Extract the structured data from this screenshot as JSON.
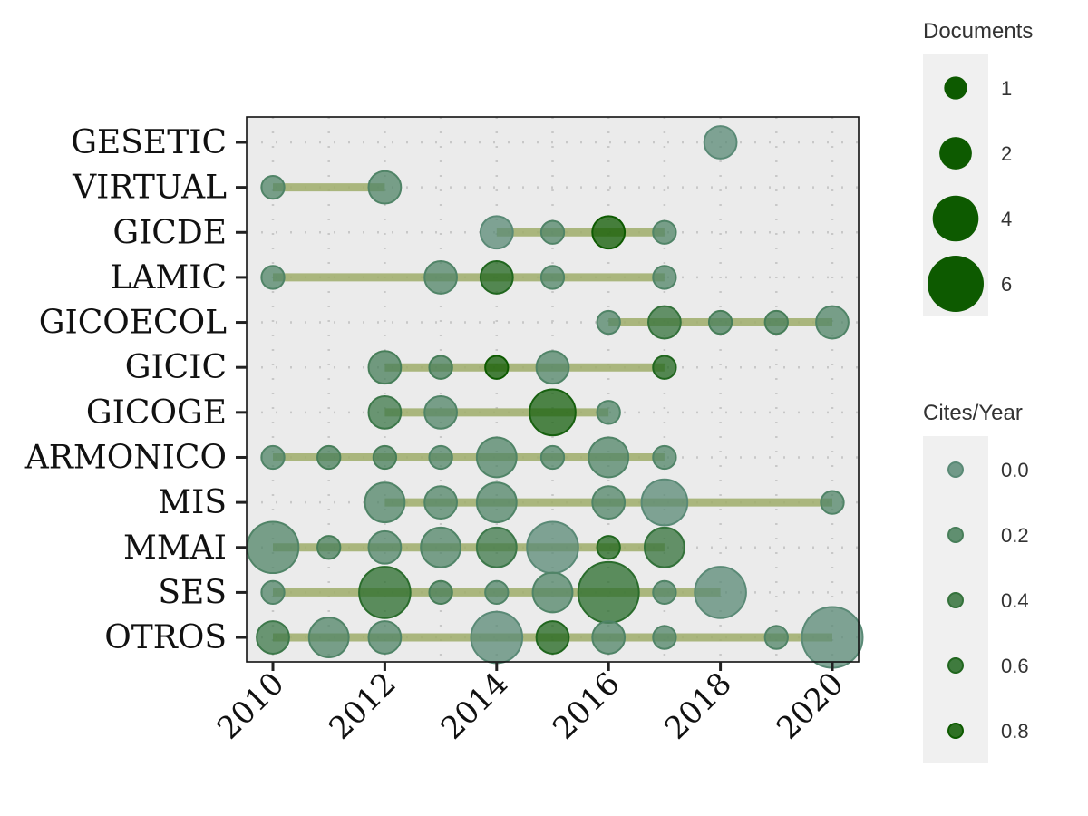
{
  "chart_data": {
    "type": "scatter",
    "x_range": [
      2010,
      2020
    ],
    "x_ticks": [
      "2010",
      "2012",
      "2014",
      "2016",
      "2018",
      "2020"
    ],
    "categories": [
      "GESETIC",
      "VIRTUAL",
      "GICDE",
      "LAMIC",
      "GICOECOL",
      "GICIC",
      "GICOGE",
      "ARMONICO",
      "MIS",
      "MMAI",
      "SES",
      "OTROS"
    ],
    "grid": "dotted",
    "segments": [
      {
        "group": "VIRTUAL",
        "x": [
          2010,
          2012
        ]
      },
      {
        "group": "GICDE",
        "x": [
          2014,
          2017
        ]
      },
      {
        "group": "LAMIC",
        "x": [
          2010,
          2017
        ]
      },
      {
        "group": "GICOECOL",
        "x": [
          2016,
          2020
        ]
      },
      {
        "group": "GICIC",
        "x": [
          2012,
          2017
        ]
      },
      {
        "group": "GICOGE",
        "x": [
          2012,
          2016
        ]
      },
      {
        "group": "ARMONICO",
        "x": [
          2010,
          2017
        ]
      },
      {
        "group": "MIS",
        "x": [
          2012,
          2020
        ]
      },
      {
        "group": "MMAI",
        "x": [
          2010,
          2017
        ]
      },
      {
        "group": "SES",
        "x": [
          2010,
          2018
        ]
      },
      {
        "group": "OTROS",
        "x": [
          2010,
          2020
        ]
      }
    ],
    "points": [
      {
        "group": "GESETIC",
        "year": 2018,
        "documents": 2,
        "cites_per_year": 0.0
      },
      {
        "group": "VIRTUAL",
        "year": 2010,
        "documents": 1,
        "cites_per_year": 0.1
      },
      {
        "group": "VIRTUAL",
        "year": 2012,
        "documents": 2,
        "cites_per_year": 0.1
      },
      {
        "group": "GICDE",
        "year": 2014,
        "documents": 2,
        "cites_per_year": 0.0
      },
      {
        "group": "GICDE",
        "year": 2015,
        "documents": 1,
        "cites_per_year": 0.1
      },
      {
        "group": "GICDE",
        "year": 2016,
        "documents": 2,
        "cites_per_year": 0.9
      },
      {
        "group": "GICDE",
        "year": 2017,
        "documents": 1,
        "cites_per_year": 0.1
      },
      {
        "group": "LAMIC",
        "year": 2010,
        "documents": 1,
        "cites_per_year": 0.1
      },
      {
        "group": "LAMIC",
        "year": 2013,
        "documents": 2,
        "cites_per_year": 0.1
      },
      {
        "group": "LAMIC",
        "year": 2014,
        "documents": 2,
        "cites_per_year": 0.6
      },
      {
        "group": "LAMIC",
        "year": 2015,
        "documents": 1,
        "cites_per_year": 0.1
      },
      {
        "group": "LAMIC",
        "year": 2017,
        "documents": 1,
        "cites_per_year": 0.1
      },
      {
        "group": "GICOECOL",
        "year": 2016,
        "documents": 1,
        "cites_per_year": 0.1
      },
      {
        "group": "GICOECOL",
        "year": 2017,
        "documents": 2,
        "cites_per_year": 0.4
      },
      {
        "group": "GICOECOL",
        "year": 2018,
        "documents": 1,
        "cites_per_year": 0.2
      },
      {
        "group": "GICOECOL",
        "year": 2019,
        "documents": 1,
        "cites_per_year": 0.2
      },
      {
        "group": "GICOECOL",
        "year": 2020,
        "documents": 2,
        "cites_per_year": 0.1
      },
      {
        "group": "GICIC",
        "year": 2012,
        "documents": 2,
        "cites_per_year": 0.2
      },
      {
        "group": "GICIC",
        "year": 2013,
        "documents": 1,
        "cites_per_year": 0.2
      },
      {
        "group": "GICIC",
        "year": 2014,
        "documents": 1,
        "cites_per_year": 0.8
      },
      {
        "group": "GICIC",
        "year": 2015,
        "documents": 2,
        "cites_per_year": 0.1
      },
      {
        "group": "GICIC",
        "year": 2017,
        "documents": 1,
        "cites_per_year": 0.6
      },
      {
        "group": "GICOGE",
        "year": 2012,
        "documents": 2,
        "cites_per_year": 0.3
      },
      {
        "group": "GICOGE",
        "year": 2013,
        "documents": 2,
        "cites_per_year": 0.1
      },
      {
        "group": "GICOGE",
        "year": 2015,
        "documents": 4,
        "cites_per_year": 0.7
      },
      {
        "group": "GICOGE",
        "year": 2016,
        "documents": 1,
        "cites_per_year": 0.1
      },
      {
        "group": "ARMONICO",
        "year": 2010,
        "documents": 1,
        "cites_per_year": 0.1
      },
      {
        "group": "ARMONICO",
        "year": 2011,
        "documents": 1,
        "cites_per_year": 0.2
      },
      {
        "group": "ARMONICO",
        "year": 2012,
        "documents": 1,
        "cites_per_year": 0.2
      },
      {
        "group": "ARMONICO",
        "year": 2013,
        "documents": 1,
        "cites_per_year": 0.1
      },
      {
        "group": "ARMONICO",
        "year": 2014,
        "documents": 3,
        "cites_per_year": 0.1
      },
      {
        "group": "ARMONICO",
        "year": 2015,
        "documents": 1,
        "cites_per_year": 0.1
      },
      {
        "group": "ARMONICO",
        "year": 2016,
        "documents": 3,
        "cites_per_year": 0.1
      },
      {
        "group": "ARMONICO",
        "year": 2017,
        "documents": 1,
        "cites_per_year": 0.1
      },
      {
        "group": "MIS",
        "year": 2012,
        "documents": 3,
        "cites_per_year": 0.1
      },
      {
        "group": "MIS",
        "year": 2013,
        "documents": 2,
        "cites_per_year": 0.1
      },
      {
        "group": "MIS",
        "year": 2014,
        "documents": 3,
        "cites_per_year": 0.1
      },
      {
        "group": "MIS",
        "year": 2016,
        "documents": 2,
        "cites_per_year": 0.1
      },
      {
        "group": "MIS",
        "year": 2017,
        "documents": 4,
        "cites_per_year": 0.0
      },
      {
        "group": "MIS",
        "year": 2020,
        "documents": 1,
        "cites_per_year": 0.1
      },
      {
        "group": "MMAI",
        "year": 2010,
        "documents": 5,
        "cites_per_year": 0.1
      },
      {
        "group": "MMAI",
        "year": 2011,
        "documents": 1,
        "cites_per_year": 0.2
      },
      {
        "group": "MMAI",
        "year": 2012,
        "documents": 2,
        "cites_per_year": 0.1
      },
      {
        "group": "MMAI",
        "year": 2013,
        "documents": 3,
        "cites_per_year": 0.1
      },
      {
        "group": "MMAI",
        "year": 2014,
        "documents": 3,
        "cites_per_year": 0.3
      },
      {
        "group": "MMAI",
        "year": 2015,
        "documents": 5,
        "cites_per_year": 0.0
      },
      {
        "group": "MMAI",
        "year": 2016,
        "documents": 1,
        "cites_per_year": 0.6
      },
      {
        "group": "MMAI",
        "year": 2017,
        "documents": 3,
        "cites_per_year": 0.4
      },
      {
        "group": "SES",
        "year": 2010,
        "documents": 1,
        "cites_per_year": 0.1
      },
      {
        "group": "SES",
        "year": 2012,
        "documents": 5,
        "cites_per_year": 0.5
      },
      {
        "group": "SES",
        "year": 2013,
        "documents": 1,
        "cites_per_year": 0.2
      },
      {
        "group": "SES",
        "year": 2014,
        "documents": 1,
        "cites_per_year": 0.1
      },
      {
        "group": "SES",
        "year": 2015,
        "documents": 3,
        "cites_per_year": 0.1
      },
      {
        "group": "SES",
        "year": 2016,
        "documents": 7,
        "cites_per_year": 0.5
      },
      {
        "group": "SES",
        "year": 2017,
        "documents": 1,
        "cites_per_year": 0.1
      },
      {
        "group": "SES",
        "year": 2018,
        "documents": 5,
        "cites_per_year": 0.0
      },
      {
        "group": "OTROS",
        "year": 2010,
        "documents": 2,
        "cites_per_year": 0.3
      },
      {
        "group": "OTROS",
        "year": 2011,
        "documents": 3,
        "cites_per_year": 0.1
      },
      {
        "group": "OTROS",
        "year": 2012,
        "documents": 2,
        "cites_per_year": 0.1
      },
      {
        "group": "OTROS",
        "year": 2014,
        "documents": 5,
        "cites_per_year": 0.0
      },
      {
        "group": "OTROS",
        "year": 2015,
        "documents": 2,
        "cites_per_year": 0.6
      },
      {
        "group": "OTROS",
        "year": 2016,
        "documents": 2,
        "cites_per_year": 0.1
      },
      {
        "group": "OTROS",
        "year": 2017,
        "documents": 1,
        "cites_per_year": 0.1
      },
      {
        "group": "OTROS",
        "year": 2019,
        "documents": 1,
        "cites_per_year": 0.1
      },
      {
        "group": "OTROS",
        "year": 2020,
        "documents": 7,
        "cites_per_year": 0.0
      }
    ],
    "legend": {
      "placement": "right",
      "size": {
        "title": "Documents",
        "values": [
          1,
          2,
          4,
          6
        ],
        "labels": [
          "1",
          "2",
          "4",
          "6"
        ]
      },
      "color": {
        "title": "Cites/Year",
        "values": [
          0.0,
          0.2,
          0.4,
          0.6,
          0.8
        ],
        "labels": [
          "0.0",
          "0.2",
          "0.4",
          "0.6",
          "0.8"
        ]
      }
    },
    "colors": {
      "panel_bg": "#ebebeb",
      "legend_bg": "#f0f0f0",
      "segment": "#9fad6a",
      "point_low": "#5a8a76",
      "point_high": "#0d5a00",
      "grid": "#c8c8c8"
    }
  }
}
